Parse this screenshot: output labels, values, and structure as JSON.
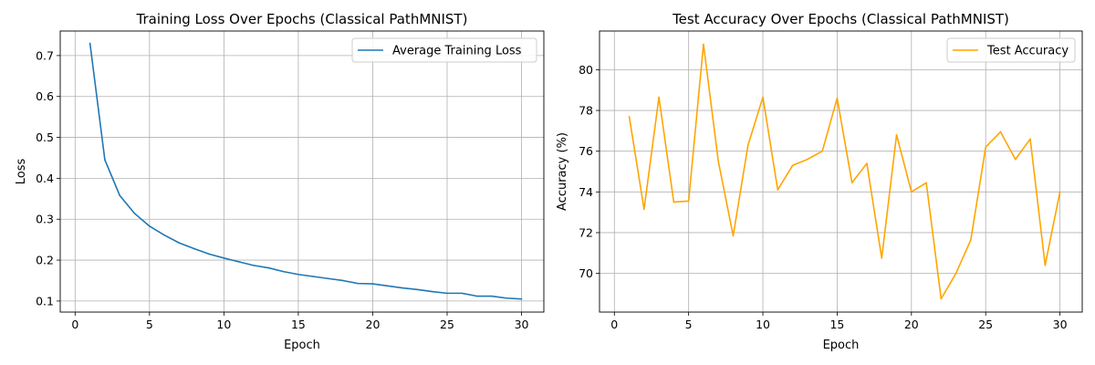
{
  "chart_data": [
    {
      "type": "line",
      "title": "Training Loss Over Epochs (Classical PathMNIST)",
      "xlabel": "Epoch",
      "ylabel": "Loss",
      "xlim": [
        -1,
        31.5
      ],
      "ylim": [
        0.073,
        0.76
      ],
      "xticks": [
        0,
        5,
        10,
        15,
        20,
        25,
        30
      ],
      "yticks": [
        0.1,
        0.2,
        0.3,
        0.4,
        0.5,
        0.6,
        0.7
      ],
      "ytick_decimals": 1,
      "grid": true,
      "legend_position": "top-right",
      "x": [
        1,
        2,
        3,
        4,
        5,
        6,
        7,
        8,
        9,
        10,
        11,
        12,
        13,
        14,
        15,
        16,
        17,
        18,
        19,
        20,
        21,
        22,
        23,
        24,
        25,
        26,
        27,
        28,
        29,
        30
      ],
      "series": [
        {
          "name": "Average Training Loss",
          "color": "#1f77b4",
          "values": [
            0.73,
            0.445,
            0.358,
            0.314,
            0.283,
            0.261,
            0.242,
            0.228,
            0.215,
            0.205,
            0.196,
            0.187,
            0.181,
            0.172,
            0.165,
            0.16,
            0.155,
            0.15,
            0.143,
            0.142,
            0.137,
            0.132,
            0.128,
            0.123,
            0.119,
            0.119,
            0.112,
            0.112,
            0.107,
            0.105
          ]
        }
      ]
    },
    {
      "type": "line",
      "title": "Test Accuracy Over Epochs (Classical PathMNIST)",
      "xlabel": "Epoch",
      "ylabel": "Accuracy (%)",
      "xlim": [
        -1,
        31.5
      ],
      "ylim": [
        68.1,
        81.9
      ],
      "xticks": [
        0,
        5,
        10,
        15,
        20,
        25,
        30
      ],
      "yticks": [
        70,
        72,
        74,
        76,
        78,
        80
      ],
      "ytick_decimals": 0,
      "grid": true,
      "legend_position": "top-right",
      "x": [
        1,
        2,
        3,
        4,
        5,
        6,
        7,
        8,
        9,
        10,
        11,
        12,
        13,
        14,
        15,
        16,
        17,
        18,
        19,
        20,
        21,
        22,
        23,
        24,
        25,
        26,
        27,
        28,
        29,
        30
      ],
      "series": [
        {
          "name": "Test Accuracy",
          "color": "#ffa500",
          "values": [
            77.7,
            73.15,
            78.65,
            73.5,
            73.55,
            81.25,
            75.5,
            71.85,
            76.3,
            78.65,
            74.1,
            75.3,
            75.6,
            76.0,
            78.6,
            74.45,
            75.4,
            70.75,
            76.8,
            74.0,
            74.45,
            68.75,
            70.0,
            71.65,
            76.2,
            76.95,
            75.6,
            76.6,
            70.4,
            74.0
          ]
        }
      ]
    }
  ]
}
